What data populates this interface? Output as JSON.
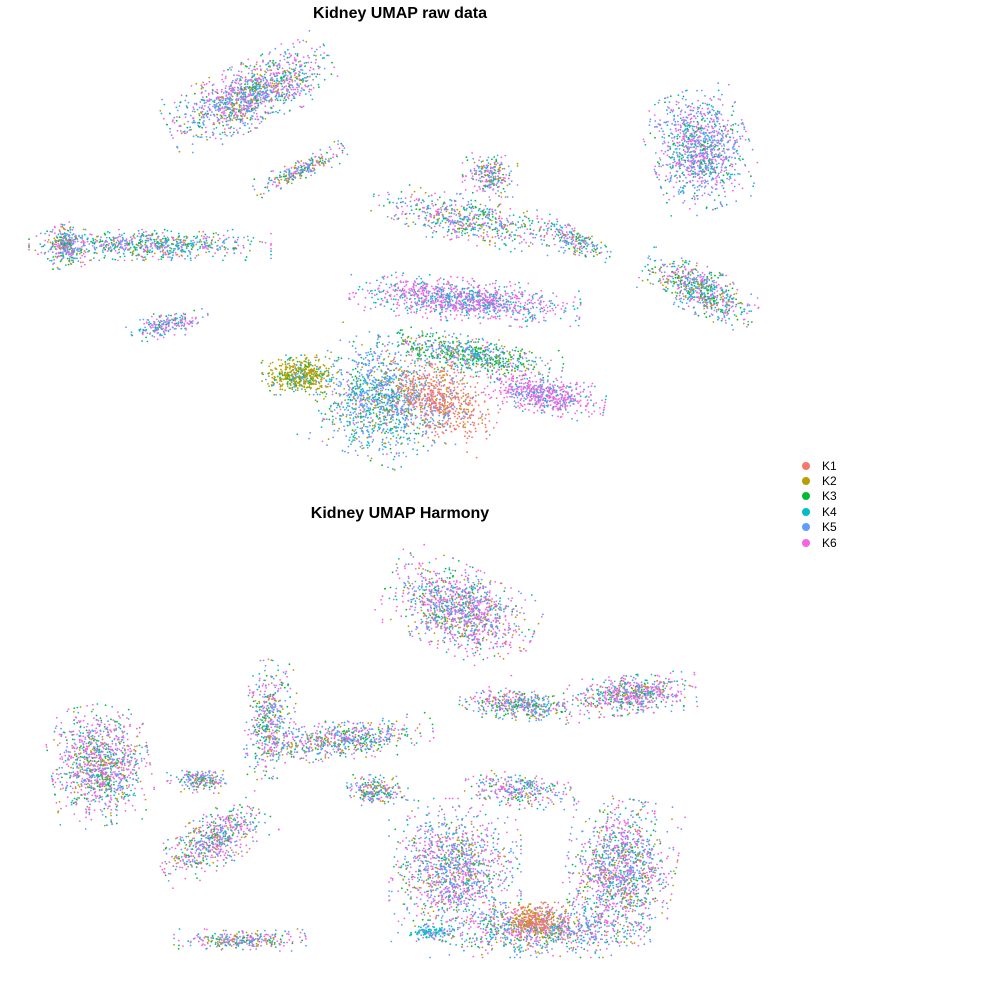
{
  "chart_data": [
    {
      "type": "scatter",
      "title": "Kidney UMAP raw data",
      "xlabel": "",
      "ylabel": "",
      "grid": false,
      "axes_visible": false,
      "legend_placement": "right",
      "series": [
        {
          "name": "K1",
          "color": "#F8766D"
        },
        {
          "name": "K2",
          "color": "#B79F00"
        },
        {
          "name": "K3",
          "color": "#00BA38"
        },
        {
          "name": "K4",
          "color": "#00BFC4"
        },
        {
          "name": "K5",
          "color": "#619CFF"
        },
        {
          "name": "K6",
          "color": "#F564E3"
        }
      ]
    },
    {
      "type": "scatter",
      "title": "Kidney UMAP Harmony",
      "xlabel": "",
      "ylabel": "",
      "grid": false,
      "axes_visible": false,
      "legend_placement": "right",
      "series": [
        {
          "name": "K1",
          "color": "#F8766D"
        },
        {
          "name": "K2",
          "color": "#B79F00"
        },
        {
          "name": "K3",
          "color": "#00BA38"
        },
        {
          "name": "K4",
          "color": "#00BFC4"
        },
        {
          "name": "K5",
          "color": "#619CFF"
        },
        {
          "name": "K6",
          "color": "#F564E3"
        }
      ]
    }
  ],
  "legend": {
    "items": [
      {
        "label": "K1",
        "color": "#F8766D"
      },
      {
        "label": "K2",
        "color": "#B79F00"
      },
      {
        "label": "K3",
        "color": "#00BA38"
      },
      {
        "label": "K4",
        "color": "#00BFC4"
      },
      {
        "label": "K5",
        "color": "#619CFF"
      },
      {
        "label": "K6",
        "color": "#F564E3"
      }
    ]
  }
}
